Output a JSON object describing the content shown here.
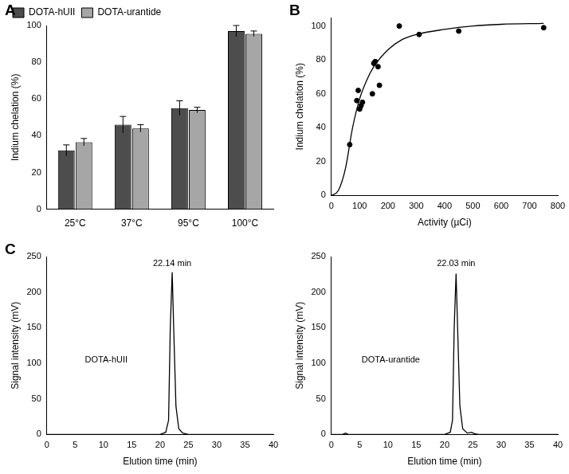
{
  "chart_data": [
    {
      "type": "bar",
      "panel": "A",
      "categories": [
        "25°C",
        "37°C",
        "95°C",
        "100°C"
      ],
      "ylabel": "Indium chelation (%)",
      "ylim": [
        0,
        100
      ],
      "yticks": [
        0,
        20,
        40,
        60,
        80,
        100
      ],
      "grid": false,
      "legend": "upper left",
      "series": [
        {
          "name": "DOTA-hUII",
          "color": "#4d4d4d",
          "values": [
            32,
            46,
            55,
            97
          ],
          "errors": [
            3,
            4.5,
            4,
            3
          ]
        },
        {
          "name": "DOTA-urantide",
          "color": "#a6a6a6",
          "values": [
            36.5,
            44,
            54,
            95.5
          ],
          "errors": [
            2,
            2,
            1.5,
            1.5
          ]
        }
      ]
    },
    {
      "type": "scatter",
      "panel": "B",
      "xlabel": "Activity (µCi)",
      "ylabel": "Indium chelation (%)",
      "xlim": [
        0,
        800
      ],
      "xticks": [
        0,
        100,
        200,
        300,
        400,
        500,
        600,
        700,
        800
      ],
      "ylim": [
        0,
        105
      ],
      "yticks": [
        0,
        20,
        40,
        60,
        80,
        100
      ],
      "grid": false,
      "series": [
        {
          "type": "scatter",
          "color": "#000000",
          "marker": "circle",
          "x": [
            65,
            90,
            95,
            100,
            105,
            110,
            145,
            150,
            155,
            165,
            170,
            240,
            310,
            450,
            750
          ],
          "values": [
            30,
            56,
            62,
            51,
            53,
            55,
            60,
            78,
            79,
            76,
            65,
            100,
            95,
            97,
            99
          ]
        },
        {
          "type": "line",
          "color": "#000000",
          "line_style": "solid",
          "x": [
            0,
            25,
            50,
            75,
            100,
            125,
            150,
            200,
            250,
            300,
            400,
            500,
            600,
            750
          ],
          "values": [
            0,
            3,
            16,
            40,
            57,
            68,
            76,
            86,
            92,
            95,
            98,
            100,
            101,
            101.5
          ]
        }
      ]
    },
    {
      "type": "line",
      "panel": "C",
      "xlabel": "Elution time (min)",
      "ylabel": "Signal intensity (mV)",
      "xlim": [
        0,
        40
      ],
      "xticks": [
        0,
        5,
        10,
        15,
        20,
        25,
        30,
        35,
        40
      ],
      "ylim": [
        0,
        250
      ],
      "yticks": [
        0,
        50,
        100,
        150,
        200,
        250
      ],
      "grid": false,
      "annotations": [
        {
          "text": "22.14 min",
          "x": 22.14,
          "y": 240
        },
        {
          "text": "DOTA-hUII",
          "x": 10.5,
          "y": 105
        }
      ],
      "series": [
        {
          "color": "#000000",
          "line_style": "solid",
          "x": [
            0,
            20,
            21,
            21.5,
            21.8,
            22.14,
            22.4,
            22.8,
            23.3,
            24,
            25,
            40
          ],
          "values": [
            0,
            0,
            3,
            20,
            150,
            228,
            150,
            40,
            8,
            2,
            0,
            0
          ]
        }
      ]
    },
    {
      "type": "line",
      "xlabel": "Elution time (min)",
      "ylabel": "Signal intensity (mV)",
      "xlim": [
        0,
        40
      ],
      "xticks": [
        0,
        5,
        10,
        15,
        20,
        25,
        30,
        35,
        40
      ],
      "ylim": [
        0,
        250
      ],
      "yticks": [
        0,
        50,
        100,
        150,
        200,
        250
      ],
      "grid": false,
      "annotations": [
        {
          "text": "22.03 min",
          "x": 22.03,
          "y": 240
        },
        {
          "text": "DOTA-urantide",
          "x": 10.5,
          "y": 105
        }
      ],
      "series": [
        {
          "color": "#000000",
          "line_style": "solid",
          "x": [
            0,
            2,
            2.5,
            3,
            20,
            21,
            21.4,
            21.7,
            22.03,
            22.3,
            22.7,
            23.2,
            24,
            24.8,
            25.3,
            26,
            40
          ],
          "values": [
            0,
            0,
            2,
            0,
            0,
            3,
            20,
            150,
            226,
            150,
            40,
            8,
            2,
            3,
            1,
            0,
            0
          ]
        }
      ]
    }
  ]
}
